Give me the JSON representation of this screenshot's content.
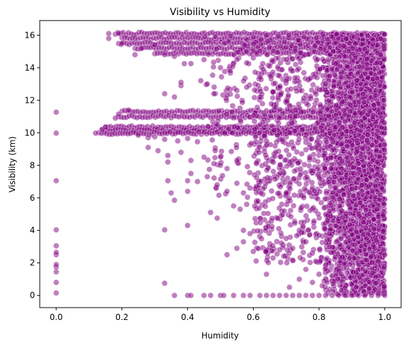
{
  "chart_data": {
    "type": "scatter",
    "title": "Visibility vs Humidity",
    "xlabel": "Humidity",
    "ylabel": "Visibility (km)",
    "xlim": [
      -0.05,
      1.05
    ],
    "ylim": [
      -0.75,
      16.9
    ],
    "xticks": [
      0.0,
      0.2,
      0.4,
      0.6,
      0.8,
      1.0
    ],
    "xtick_labels": [
      "0.0",
      "0.2",
      "0.4",
      "0.6",
      "0.8",
      "1.0"
    ],
    "yticks": [
      0,
      2,
      4,
      6,
      8,
      10,
      12,
      14,
      16
    ],
    "ytick_labels": [
      "0",
      "2",
      "4",
      "6",
      "8",
      "10",
      "12",
      "14",
      "16"
    ],
    "grid": false,
    "legend": "none",
    "point_color": "#800080",
    "point_alpha": 0.5,
    "series": [
      {
        "points": [
          [
            0.0,
            0.15
          ],
          [
            0.0,
            0.8
          ],
          [
            0.0,
            1.45
          ],
          [
            0.0,
            1.75
          ],
          [
            0.0,
            1.9
          ],
          [
            0.0,
            2.5
          ],
          [
            0.0,
            2.65
          ],
          [
            0.0,
            3.05
          ],
          [
            0.0,
            4.03
          ],
          [
            0.0,
            7.05
          ],
          [
            0.0,
            9.98
          ],
          [
            0.0,
            11.27
          ],
          [
            0.19,
            16.1
          ],
          [
            0.16,
            16.1
          ],
          [
            0.16,
            15.8
          ],
          [
            0.2,
            15.5
          ],
          [
            0.24,
            14.8
          ],
          [
            0.26,
            15.2
          ],
          [
            0.3,
            15.4
          ],
          [
            0.33,
            14.8
          ],
          [
            0.36,
            14.7
          ],
          [
            0.39,
            14.25
          ],
          [
            0.41,
            14.25
          ],
          [
            0.45,
            14.5
          ],
          [
            0.5,
            14.0
          ],
          [
            0.53,
            13.8
          ],
          [
            0.55,
            14.5
          ],
          [
            0.58,
            14.3
          ],
          [
            0.6,
            14.6
          ],
          [
            0.63,
            13.9
          ],
          [
            0.65,
            14.1
          ],
          [
            0.68,
            13.5
          ],
          [
            0.7,
            13.2
          ],
          [
            0.72,
            13.8
          ],
          [
            0.38,
            12.9
          ],
          [
            0.38,
            13.1
          ],
          [
            0.44,
            13.2
          ],
          [
            0.46,
            13.0
          ],
          [
            0.33,
            12.4
          ],
          [
            0.36,
            12.2
          ],
          [
            0.48,
            12.4
          ],
          [
            0.52,
            12.3
          ],
          [
            0.55,
            12.6
          ],
          [
            0.58,
            12.8
          ],
          [
            0.62,
            12.2
          ],
          [
            0.66,
            12.5
          ],
          [
            0.12,
            9.98
          ],
          [
            0.14,
            10.2
          ],
          [
            0.15,
            10.35
          ],
          [
            0.18,
            10.9
          ],
          [
            0.19,
            11.15
          ],
          [
            0.22,
            11.4
          ],
          [
            0.25,
            9.85
          ],
          [
            0.28,
            9.7
          ],
          [
            0.3,
            9.75
          ],
          [
            0.33,
            9.6
          ],
          [
            0.37,
            9.5
          ],
          [
            0.4,
            9.65
          ],
          [
            0.43,
            9.45
          ],
          [
            0.28,
            9.1
          ],
          [
            0.31,
            8.9
          ],
          [
            0.34,
            8.6
          ],
          [
            0.38,
            8.8
          ],
          [
            0.41,
            8.3
          ],
          [
            0.45,
            8.5
          ],
          [
            0.48,
            8.1
          ],
          [
            0.5,
            8.0
          ],
          [
            0.52,
            7.8
          ],
          [
            0.55,
            8.3
          ],
          [
            0.41,
            7.5
          ],
          [
            0.43,
            7.0
          ],
          [
            0.46,
            7.3
          ],
          [
            0.49,
            6.8
          ],
          [
            0.52,
            6.4
          ],
          [
            0.55,
            6.9
          ],
          [
            0.57,
            6.3
          ],
          [
            0.59,
            6.6
          ],
          [
            0.34,
            8.2
          ],
          [
            0.34,
            7.05
          ],
          [
            0.4,
            7.05
          ],
          [
            0.4,
            6.4
          ],
          [
            0.35,
            6.3
          ],
          [
            0.36,
            5.85
          ],
          [
            0.47,
            5.1
          ],
          [
            0.49,
            4.75
          ],
          [
            0.54,
            5.5
          ],
          [
            0.56,
            5.3
          ],
          [
            0.58,
            5.6
          ],
          [
            0.33,
            4.03
          ],
          [
            0.4,
            4.3
          ],
          [
            0.57,
            4.0
          ],
          [
            0.59,
            3.8
          ],
          [
            0.52,
            2.5
          ],
          [
            0.55,
            2.9
          ],
          [
            0.57,
            3.3
          ],
          [
            0.6,
            2.7
          ],
          [
            0.64,
            1.3
          ],
          [
            0.66,
            2.3
          ],
          [
            0.68,
            2.8
          ],
          [
            0.33,
            0.75
          ],
          [
            0.36,
            0.0
          ],
          [
            0.4,
            0.0
          ],
          [
            0.41,
            0.0
          ],
          [
            0.45,
            0.0
          ],
          [
            0.47,
            0.0
          ],
          [
            0.5,
            0.0
          ],
          [
            0.51,
            0.0
          ],
          [
            0.54,
            0.0
          ],
          [
            0.57,
            0.0
          ],
          [
            0.59,
            0.0
          ],
          [
            0.62,
            0.0
          ],
          [
            0.64,
            0.0
          ],
          [
            0.66,
            0.0
          ],
          [
            0.68,
            0.0
          ],
          [
            0.7,
            0.0
          ],
          [
            0.72,
            0.0
          ],
          [
            0.74,
            0.0
          ],
          [
            0.76,
            0.0
          ],
          [
            0.78,
            0.0
          ],
          [
            0.8,
            0.0
          ],
          [
            0.82,
            0.0
          ],
          [
            0.84,
            0.0
          ],
          [
            0.86,
            0.0
          ],
          [
            0.88,
            0.0
          ],
          [
            0.9,
            0.0
          ],
          [
            0.92,
            0.0
          ],
          [
            0.94,
            0.0
          ],
          [
            0.96,
            0.0
          ],
          [
            0.98,
            0.0
          ],
          [
            1.0,
            0.0
          ],
          [
            0.71,
            0.5
          ],
          [
            0.74,
            1.0
          ],
          [
            0.76,
            1.6
          ],
          [
            0.78,
            0.8
          ],
          [
            0.79,
            2.1
          ],
          [
            0.8,
            1.3
          ],
          [
            0.81,
            0.6
          ],
          [
            0.7,
            3.5
          ],
          [
            0.72,
            2.9
          ],
          [
            0.74,
            4.0
          ],
          [
            0.76,
            3.3
          ],
          [
            0.78,
            2.6
          ],
          [
            0.8,
            3.7
          ]
        ]
      }
    ]
  }
}
